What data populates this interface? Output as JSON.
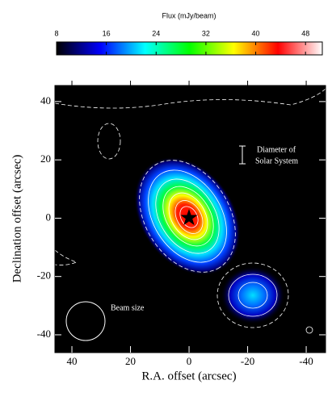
{
  "chart_data": {
    "type": "image",
    "colorbar_title": "Flux (mJy/beam)",
    "clim": [
      8,
      50.7
    ],
    "cticks": [
      8,
      16,
      24,
      32,
      40,
      48
    ],
    "colormap": [
      "#000000",
      "#0000ff",
      "#00ffff",
      "#00ff00",
      "#ffff00",
      "#ff0000",
      "#ffffff"
    ],
    "xlabel": "R.A. offset (arcsec)",
    "ylabel": "Declination offset (arcsec)",
    "xlim": [
      45.8,
      -46.6
    ],
    "ylim": [
      -46.1,
      45.5
    ],
    "xticks": [
      40,
      20,
      0,
      -20,
      -40
    ],
    "yticks": [
      40,
      20,
      0,
      -20,
      -40
    ],
    "annotations": [
      "Diameter of",
      "Solar System",
      "Beam size"
    ]
  }
}
